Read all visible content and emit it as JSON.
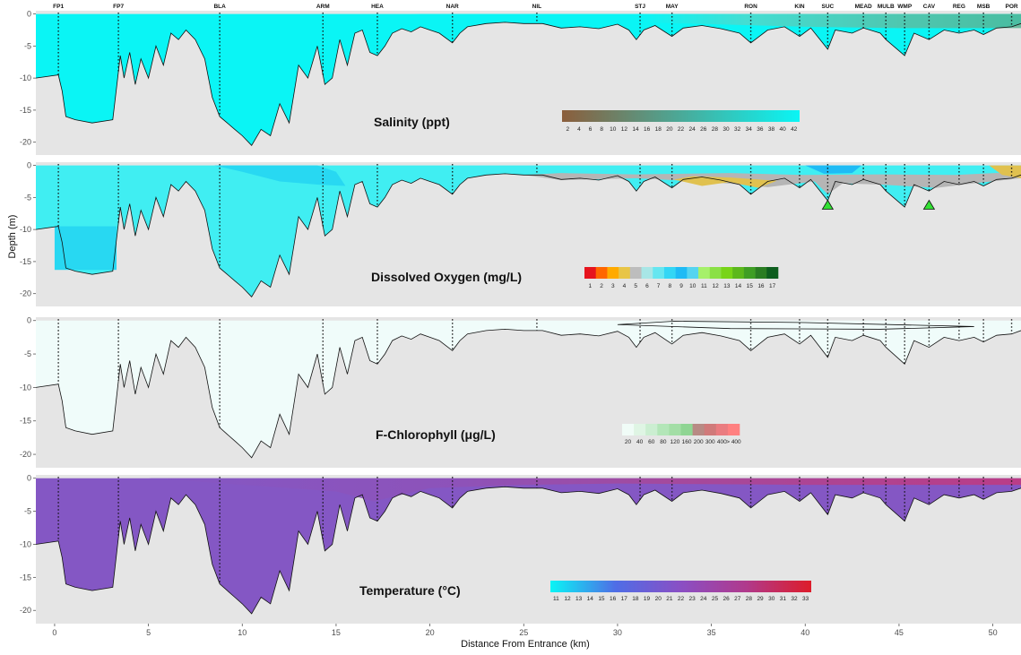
{
  "chart_data": {
    "type": "area",
    "xlabel": "Distance From Entrance (km)",
    "ylabel": "Depth (m)",
    "xlim": [
      -1,
      51.5
    ],
    "ylim": [
      -22,
      0.5
    ],
    "x_ticks": [
      0,
      5,
      10,
      15,
      20,
      25,
      30,
      35,
      40,
      45,
      50
    ],
    "y_ticks": [
      0,
      -5,
      -10,
      -15,
      -20
    ],
    "stations": [
      {
        "name": "FP1",
        "km": 0.2
      },
      {
        "name": "FP7",
        "km": 3.4
      },
      {
        "name": "BLA",
        "km": 8.8
      },
      {
        "name": "ARM",
        "km": 14.3
      },
      {
        "name": "HEA",
        "km": 17.2
      },
      {
        "name": "NAR",
        "km": 21.2
      },
      {
        "name": "NIL",
        "km": 25.7
      },
      {
        "name": "STJ",
        "km": 31.2
      },
      {
        "name": "MAY",
        "km": 32.9
      },
      {
        "name": "RON",
        "km": 37.1
      },
      {
        "name": "KIN",
        "km": 39.7
      },
      {
        "name": "SUC",
        "km": 41.2
      },
      {
        "name": "MEAD",
        "km": 43.1
      },
      {
        "name": "MULB",
        "km": 44.3
      },
      {
        "name": "WMP",
        "km": 45.3
      },
      {
        "name": "CAV",
        "km": 46.6
      },
      {
        "name": "REG",
        "km": 48.2
      },
      {
        "name": "MSB",
        "km": 49.5
      },
      {
        "name": "POR",
        "km": 51.0
      }
    ],
    "bathymetry": {
      "x": [
        -1,
        0.2,
        0.4,
        0.6,
        1.1,
        2.0,
        3.1,
        3.5,
        3.7,
        4.0,
        4.3,
        4.6,
        5.0,
        5.4,
        5.8,
        6.2,
        6.6,
        7.0,
        7.5,
        8.0,
        8.4,
        8.8,
        9.2,
        9.6,
        10.0,
        10.5,
        11.0,
        11.5,
        12.0,
        12.5,
        13.0,
        13.5,
        14.0,
        14.4,
        14.8,
        15.2,
        15.6,
        16.0,
        16.4,
        16.8,
        17.2,
        17.6,
        18.0,
        18.5,
        19.0,
        19.5,
        20.0,
        20.5,
        21.2,
        21.6,
        22.0,
        23.0,
        24.0,
        25.0,
        26.0,
        27.0,
        28.0,
        29.0,
        30.0,
        30.6,
        31.0,
        31.4,
        32.0,
        32.9,
        33.5,
        34.5,
        35.5,
        36.5,
        37.1,
        38.0,
        38.9,
        39.7,
        40.3,
        41.2,
        41.6,
        42.5,
        43.1,
        44.0,
        44.3,
        45.3,
        45.8,
        46.6,
        47.4,
        48.2,
        49.0,
        49.5,
        50.2,
        51.0,
        51.5
      ],
      "depth": [
        -10,
        -9.5,
        -12,
        -16,
        -16.5,
        -17,
        -16.5,
        -6.5,
        -10,
        -6,
        -11,
        -7,
        -10,
        -5,
        -8,
        -3,
        -4,
        -2.5,
        -4,
        -7,
        -13,
        -16,
        -17,
        -18,
        -19,
        -20.5,
        -18,
        -19,
        -14,
        -17,
        -8,
        -10,
        -5,
        -11,
        -10,
        -4,
        -8,
        -3,
        -2.5,
        -6,
        -6.5,
        -5,
        -3,
        -2.3,
        -2.8,
        -2,
        -2.5,
        -3,
        -4.5,
        -3,
        -2,
        -1.5,
        -1.3,
        -1.5,
        -1.5,
        -2.2,
        -2,
        -2.3,
        -1.6,
        -2.5,
        -4,
        -2.5,
        -1.8,
        -3.5,
        -2.2,
        -1.8,
        -2.3,
        -3,
        -4.5,
        -2.5,
        -2,
        -3.5,
        -2.2,
        -5.5,
        -2.5,
        -3,
        -2.2,
        -3,
        -4,
        -6.5,
        -3,
        -4,
        -2.5,
        -3,
        -2.5,
        -3.2,
        -2.2,
        -2,
        -1.5
      ]
    },
    "panels": [
      {
        "id": "salinity",
        "title": "Salinity (ppt)",
        "colorbar_labels": [
          "2",
          "4",
          "6",
          "8",
          "10",
          "12",
          "14",
          "16",
          "18",
          "20",
          "22",
          "24",
          "26",
          "28",
          "30",
          "32",
          "34",
          "36",
          "38",
          "40",
          "42"
        ],
        "colorbar_colors": [
          "#8b5e3c",
          "#0af5f5"
        ],
        "fill": "#0af5f5"
      },
      {
        "id": "oxygen",
        "title": "Dissolved Oxygen (mg/L)",
        "colorbar_labels": [
          "1",
          "2",
          "3",
          "4",
          "5",
          "6",
          "7",
          "8",
          "9",
          "10",
          "11",
          "12",
          "13",
          "14",
          "15",
          "16",
          "17"
        ],
        "colorbar_colors": [
          "#e6141e",
          "#ff6600",
          "#ffaa00",
          "#e8c547",
          "#bdbdbd",
          "#a8e6e6",
          "#66e6f0",
          "#33d6f5",
          "#1fbbf5",
          "#55d4f0",
          "#a6f06a",
          "#8ae045",
          "#78d418",
          "#5cb81c",
          "#3f9e24",
          "#2a7d22",
          "#0d5e1e"
        ],
        "fill": "#40eef2",
        "markers": [
          {
            "km": 41.2,
            "depth": -6
          },
          {
            "km": 46.6,
            "depth": -6
          }
        ]
      },
      {
        "id": "chlorophyll",
        "title": "F-Chlorophyll (μg/L)",
        "colorbar_labels": [
          "20",
          "40",
          "60",
          "80",
          "120",
          "160",
          "200",
          "300",
          "400",
          "> 400"
        ],
        "colorbar_colors": [
          "#f0fcf7",
          "#dff5e4",
          "#cbeed1",
          "#b3e6b8",
          "#a3dea6",
          "#8fd593",
          "#b88a84",
          "#d07a7a",
          "#ea7c80",
          "#ff8080"
        ],
        "fill": "#f0fcfa"
      },
      {
        "id": "temperature",
        "title": "Temperature (°C)",
        "colorbar_labels": [
          "11",
          "12",
          "13",
          "14",
          "15",
          "16",
          "17",
          "18",
          "19",
          "20",
          "21",
          "22",
          "23",
          "24",
          "25",
          "26",
          "27",
          "28",
          "29",
          "30",
          "31",
          "32",
          "33"
        ],
        "colorbar_colors": [
          "#0af5f5",
          "#4f6de6",
          "#8a4fc4",
          "#b03a8c",
          "#dd1c2a"
        ],
        "fill": "#8457c4"
      }
    ]
  }
}
